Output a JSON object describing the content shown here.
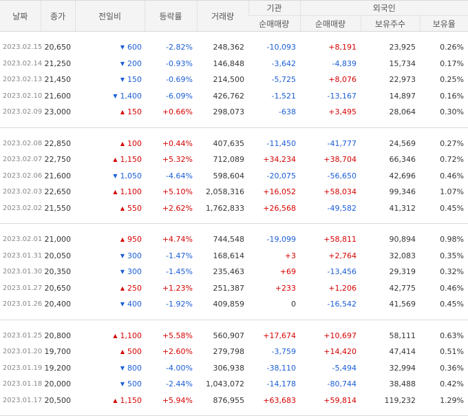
{
  "headers": {
    "date": "날짜",
    "close": "종가",
    "change": "전일비",
    "rate": "등락률",
    "volume": "거래량",
    "institution": "기관",
    "foreign": "외국인",
    "inst_net": "순매매량",
    "foreign_net": "순매매량",
    "foreign_holdings": "보유주수",
    "foreign_ratio": "보유율"
  },
  "colors": {
    "up": "#d60000",
    "down": "#1a5dd6",
    "header_bg": "#f4f4f4"
  },
  "groups": [
    [
      {
        "date": "2023.02.15",
        "close": "20,650",
        "dir": "down",
        "change": "600",
        "rate": "-2.82%",
        "volume": "248,362",
        "inst": "-10,093",
        "foreign": "+8,191",
        "holdings": "23,925",
        "ratio": "0.26%"
      },
      {
        "date": "2023.02.14",
        "close": "21,250",
        "dir": "down",
        "change": "200",
        "rate": "-0.93%",
        "volume": "146,848",
        "inst": "-3,642",
        "foreign": "-4,839",
        "holdings": "15,734",
        "ratio": "0.17%"
      },
      {
        "date": "2023.02.13",
        "close": "21,450",
        "dir": "down",
        "change": "150",
        "rate": "-0.69%",
        "volume": "214,500",
        "inst": "-5,725",
        "foreign": "+8,076",
        "holdings": "22,973",
        "ratio": "0.25%"
      },
      {
        "date": "2023.02.10",
        "close": "21,600",
        "dir": "down",
        "change": "1,400",
        "rate": "-6.09%",
        "volume": "426,762",
        "inst": "-1,521",
        "foreign": "-13,167",
        "holdings": "14,897",
        "ratio": "0.16%"
      },
      {
        "date": "2023.02.09",
        "close": "23,000",
        "dir": "up",
        "change": "150",
        "rate": "+0.66%",
        "volume": "298,073",
        "inst": "-638",
        "foreign": "+3,495",
        "holdings": "28,064",
        "ratio": "0.30%"
      }
    ],
    [
      {
        "date": "2023.02.08",
        "close": "22,850",
        "dir": "up",
        "change": "100",
        "rate": "+0.44%",
        "volume": "407,635",
        "inst": "-11,450",
        "foreign": "-41,777",
        "holdings": "24,569",
        "ratio": "0.27%"
      },
      {
        "date": "2023.02.07",
        "close": "22,750",
        "dir": "up",
        "change": "1,150",
        "rate": "+5.32%",
        "volume": "712,089",
        "inst": "+34,234",
        "foreign": "+38,704",
        "holdings": "66,346",
        "ratio": "0.72%"
      },
      {
        "date": "2023.02.06",
        "close": "21,600",
        "dir": "down",
        "change": "1,050",
        "rate": "-4.64%",
        "volume": "598,604",
        "inst": "-20,075",
        "foreign": "-56,650",
        "holdings": "42,696",
        "ratio": "0.46%"
      },
      {
        "date": "2023.02.03",
        "close": "22,650",
        "dir": "up",
        "change": "1,100",
        "rate": "+5.10%",
        "volume": "2,058,316",
        "inst": "+16,052",
        "foreign": "+58,034",
        "holdings": "99,346",
        "ratio": "1.07%"
      },
      {
        "date": "2023.02.02",
        "close": "21,550",
        "dir": "up",
        "change": "550",
        "rate": "+2.62%",
        "volume": "1,762,833",
        "inst": "+26,568",
        "foreign": "-49,582",
        "holdings": "41,312",
        "ratio": "0.45%"
      }
    ],
    [
      {
        "date": "2023.02.01",
        "close": "21,000",
        "dir": "up",
        "change": "950",
        "rate": "+4.74%",
        "volume": "744,548",
        "inst": "-19,099",
        "foreign": "+58,811",
        "holdings": "90,894",
        "ratio": "0.98%"
      },
      {
        "date": "2023.01.31",
        "close": "20,050",
        "dir": "down",
        "change": "300",
        "rate": "-1.47%",
        "volume": "168,614",
        "inst": "+3",
        "foreign": "+2,764",
        "holdings": "32,083",
        "ratio": "0.35%"
      },
      {
        "date": "2023.01.30",
        "close": "20,350",
        "dir": "down",
        "change": "300",
        "rate": "-1.45%",
        "volume": "235,463",
        "inst": "+69",
        "foreign": "-13,456",
        "holdings": "29,319",
        "ratio": "0.32%"
      },
      {
        "date": "2023.01.27",
        "close": "20,650",
        "dir": "up",
        "change": "250",
        "rate": "+1.23%",
        "volume": "251,387",
        "inst": "+233",
        "foreign": "+1,206",
        "holdings": "42,775",
        "ratio": "0.46%"
      },
      {
        "date": "2023.01.26",
        "close": "20,400",
        "dir": "down",
        "change": "400",
        "rate": "-1.92%",
        "volume": "409,859",
        "inst": "0",
        "foreign": "-16,542",
        "holdings": "41,569",
        "ratio": "0.45%"
      }
    ],
    [
      {
        "date": "2023.01.25",
        "close": "20,800",
        "dir": "up",
        "change": "1,100",
        "rate": "+5.58%",
        "volume": "560,907",
        "inst": "+17,674",
        "foreign": "+10,697",
        "holdings": "58,111",
        "ratio": "0.63%"
      },
      {
        "date": "2023.01.20",
        "close": "19,700",
        "dir": "up",
        "change": "500",
        "rate": "+2.60%",
        "volume": "279,798",
        "inst": "-3,759",
        "foreign": "+14,420",
        "holdings": "47,414",
        "ratio": "0.51%"
      },
      {
        "date": "2023.01.19",
        "close": "19,200",
        "dir": "down",
        "change": "800",
        "rate": "-4.00%",
        "volume": "306,938",
        "inst": "-38,110",
        "foreign": "-5,494",
        "holdings": "32,994",
        "ratio": "0.36%"
      },
      {
        "date": "2023.01.18",
        "close": "20,000",
        "dir": "down",
        "change": "500",
        "rate": "-2.44%",
        "volume": "1,043,072",
        "inst": "-14,178",
        "foreign": "-80,744",
        "holdings": "38,488",
        "ratio": "0.42%"
      },
      {
        "date": "2023.01.17",
        "close": "20,500",
        "dir": "up",
        "change": "1,150",
        "rate": "+5.94%",
        "volume": "876,955",
        "inst": "+63,683",
        "foreign": "+59,814",
        "holdings": "119,232",
        "ratio": "1.29%"
      }
    ]
  ]
}
